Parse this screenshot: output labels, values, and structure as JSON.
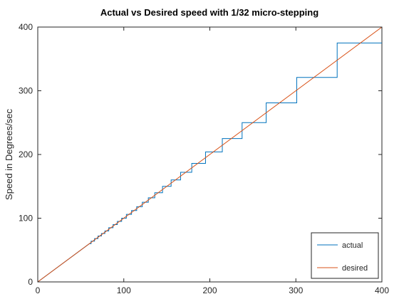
{
  "chart_data": {
    "type": "line",
    "title": "Actual vs Desired speed with 1/32 micro-stepping",
    "xlabel": "",
    "ylabel": "Speed in Degrees/sec",
    "xlim": [
      0,
      400
    ],
    "ylim": [
      0,
      400
    ],
    "x_ticks": [
      0,
      100,
      200,
      300,
      400
    ],
    "y_ticks": [
      0,
      100,
      200,
      300,
      400
    ],
    "grid": false,
    "legend_position": "bottom-right",
    "series": [
      {
        "name": "actual",
        "color": "#0072bd",
        "style": "step",
        "levels": [
          60,
          64,
          68,
          72,
          76,
          80,
          85,
          90,
          95,
          100,
          106,
          112,
          118,
          125,
          132,
          140,
          150,
          160,
          172,
          186,
          204,
          225,
          250,
          281,
          321,
          375
        ]
      },
      {
        "name": "desired",
        "color": "#d95319",
        "style": "line",
        "x": [
          0,
          400
        ],
        "y": [
          0,
          400
        ]
      }
    ]
  }
}
